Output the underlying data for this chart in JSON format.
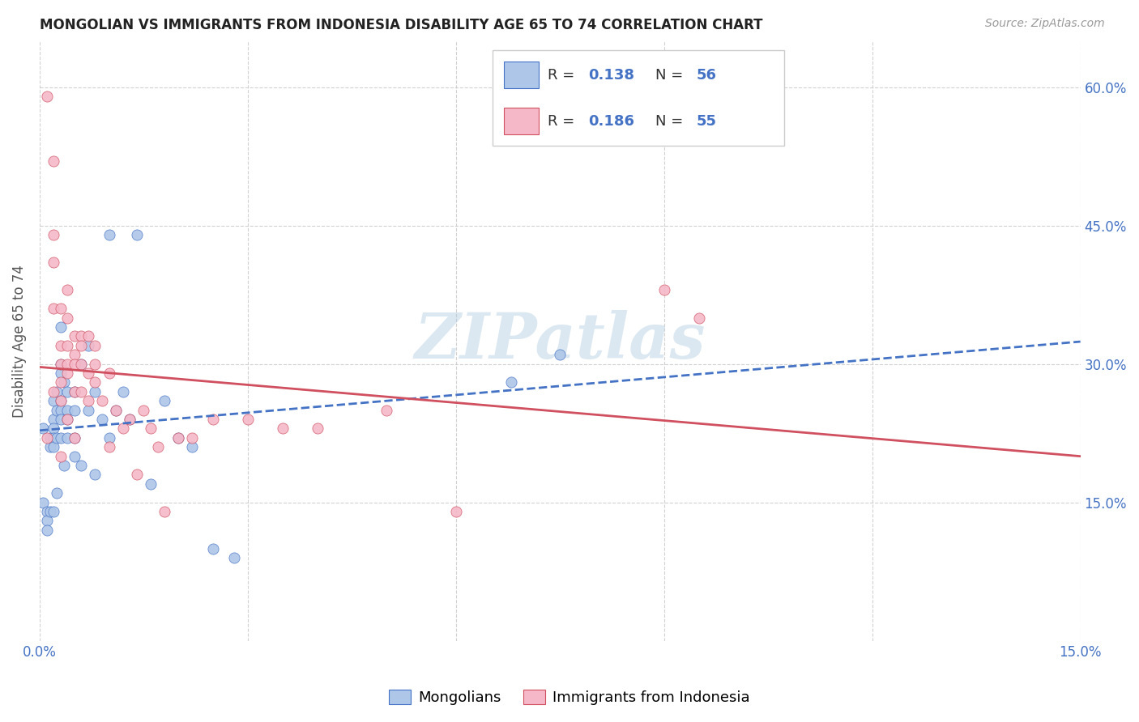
{
  "title": "MONGOLIAN VS IMMIGRANTS FROM INDONESIA DISABILITY AGE 65 TO 74 CORRELATION CHART",
  "source": "Source: ZipAtlas.com",
  "ylabel": "Disability Age 65 to 74",
  "x_min": 0.0,
  "x_max": 0.15,
  "y_min": 0.0,
  "y_max": 0.65,
  "y_ticks_right": [
    0.15,
    0.3,
    0.45,
    0.6
  ],
  "y_tick_labels_right": [
    "15.0%",
    "30.0%",
    "45.0%",
    "60.0%"
  ],
  "mongolian_R": 0.138,
  "mongolian_N": 56,
  "indonesia_R": 0.186,
  "indonesia_N": 55,
  "mongolian_color": "#aec6e8",
  "indonesia_color": "#f4b8c8",
  "mongolian_line_color": "#4472c4",
  "indonesia_line_color": "#d05060",
  "watermark": "ZIPatlas",
  "mongolian_x": [
    0.0005,
    0.0005,
    0.001,
    0.001,
    0.001,
    0.0015,
    0.0015,
    0.0015,
    0.002,
    0.002,
    0.002,
    0.002,
    0.002,
    0.002,
    0.0025,
    0.0025,
    0.0025,
    0.0025,
    0.003,
    0.003,
    0.003,
    0.003,
    0.003,
    0.003,
    0.003,
    0.0035,
    0.0035,
    0.004,
    0.004,
    0.004,
    0.004,
    0.005,
    0.005,
    0.005,
    0.005,
    0.006,
    0.006,
    0.007,
    0.007,
    0.008,
    0.008,
    0.009,
    0.01,
    0.01,
    0.011,
    0.012,
    0.013,
    0.014,
    0.016,
    0.018,
    0.02,
    0.022,
    0.025,
    0.028,
    0.068,
    0.075
  ],
  "mongolian_y": [
    0.23,
    0.15,
    0.14,
    0.13,
    0.12,
    0.22,
    0.21,
    0.14,
    0.26,
    0.24,
    0.23,
    0.22,
    0.21,
    0.14,
    0.27,
    0.25,
    0.22,
    0.16,
    0.34,
    0.3,
    0.29,
    0.26,
    0.25,
    0.24,
    0.22,
    0.28,
    0.19,
    0.27,
    0.25,
    0.24,
    0.22,
    0.27,
    0.25,
    0.22,
    0.2,
    0.3,
    0.19,
    0.32,
    0.25,
    0.27,
    0.18,
    0.24,
    0.44,
    0.22,
    0.25,
    0.27,
    0.24,
    0.44,
    0.17,
    0.26,
    0.22,
    0.21,
    0.1,
    0.09,
    0.28,
    0.31
  ],
  "indonesia_x": [
    0.001,
    0.001,
    0.002,
    0.002,
    0.002,
    0.002,
    0.002,
    0.003,
    0.003,
    0.003,
    0.003,
    0.003,
    0.003,
    0.004,
    0.004,
    0.004,
    0.004,
    0.004,
    0.004,
    0.005,
    0.005,
    0.005,
    0.005,
    0.005,
    0.006,
    0.006,
    0.006,
    0.006,
    0.007,
    0.007,
    0.007,
    0.008,
    0.008,
    0.008,
    0.009,
    0.01,
    0.01,
    0.011,
    0.012,
    0.013,
    0.014,
    0.015,
    0.016,
    0.017,
    0.018,
    0.02,
    0.022,
    0.025,
    0.03,
    0.035,
    0.04,
    0.05,
    0.06,
    0.09,
    0.095
  ],
  "indonesia_y": [
    0.59,
    0.22,
    0.52,
    0.44,
    0.41,
    0.36,
    0.27,
    0.36,
    0.32,
    0.3,
    0.28,
    0.26,
    0.2,
    0.38,
    0.35,
    0.32,
    0.3,
    0.29,
    0.24,
    0.33,
    0.31,
    0.3,
    0.27,
    0.22,
    0.33,
    0.32,
    0.3,
    0.27,
    0.33,
    0.29,
    0.26,
    0.32,
    0.3,
    0.28,
    0.26,
    0.29,
    0.21,
    0.25,
    0.23,
    0.24,
    0.18,
    0.25,
    0.23,
    0.21,
    0.14,
    0.22,
    0.22,
    0.24,
    0.24,
    0.23,
    0.23,
    0.25,
    0.14,
    0.38,
    0.35
  ]
}
